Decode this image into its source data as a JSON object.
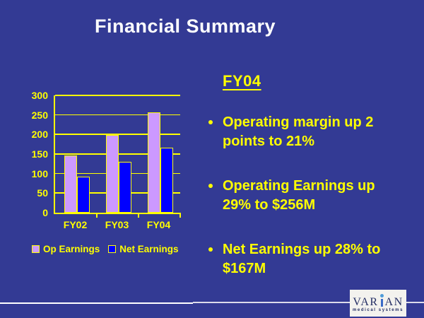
{
  "slide": {
    "title": "Financial Summary",
    "background_color": "#333a94",
    "accent_color": "#ffff00",
    "title_color": "#ffffff"
  },
  "right_panel": {
    "heading": "FY04",
    "bullets": [
      {
        "line1": "Operating margin up 2",
        "line2": "points to 21%"
      },
      {
        "line1": "Operating Earnings up",
        "line2": "29% to $256M"
      },
      {
        "line1": "Net Earnings up 28% to",
        "line2": "$167M"
      }
    ]
  },
  "chart_data": {
    "type": "bar",
    "categories": [
      "FY02",
      "FY03",
      "FY04"
    ],
    "series": [
      {
        "name": "Op Earnings",
        "color": "#cc99ff",
        "values": [
          146,
          199,
          256
        ]
      },
      {
        "name": "Net Earnings",
        "color": "#0000ff",
        "values": [
          92,
          130,
          167
        ]
      }
    ],
    "ylim": [
      0,
      300
    ],
    "yticks": [
      0,
      50,
      100,
      150,
      200,
      250,
      300
    ],
    "grid": true,
    "gridline_color": "#ffff00",
    "legend_position": "bottom"
  },
  "logo": {
    "wordmark_left": "VAR",
    "wordmark_right": "AN",
    "tagline": "medical systems",
    "text_color": "#232d63",
    "i_stem_color": "#3a6bc8",
    "i_dot_color": "#4e9bd8",
    "box_color": "#f3f2ee"
  }
}
